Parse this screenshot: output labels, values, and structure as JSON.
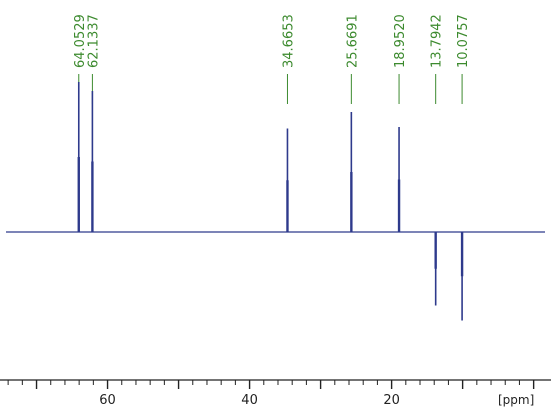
{
  "chart_data": {
    "type": "line",
    "title": "",
    "xlabel": "[ppm]",
    "ylabel": "",
    "x_reversed": true,
    "xlim": [
      74.3,
      -1.6
    ],
    "x_ticks": [
      60,
      40,
      20
    ],
    "x_tick_labels": [
      "60",
      "40",
      "20"
    ],
    "y_range": [
      -1.0,
      1.0
    ],
    "grid": false,
    "colors": {
      "spectrum": "#2e3a8c",
      "label": "#3c8a2e",
      "axis": "#222222"
    },
    "peaks": [
      {
        "ppm": 64.0529,
        "label": "64.0529",
        "intensity": 1.0
      },
      {
        "ppm": 62.1337,
        "label": "62.1337",
        "intensity": 0.94
      },
      {
        "ppm": 34.6653,
        "label": "34.6653",
        "intensity": 0.69
      },
      {
        "ppm": 25.6691,
        "label": "25.6691",
        "intensity": 0.8
      },
      {
        "ppm": 18.952,
        "label": "18.9520",
        "intensity": 0.7
      },
      {
        "ppm": 13.7942,
        "label": "13.7942",
        "intensity": -0.49
      },
      {
        "ppm": 10.0757,
        "label": "10.0757",
        "intensity": -0.59
      }
    ]
  }
}
